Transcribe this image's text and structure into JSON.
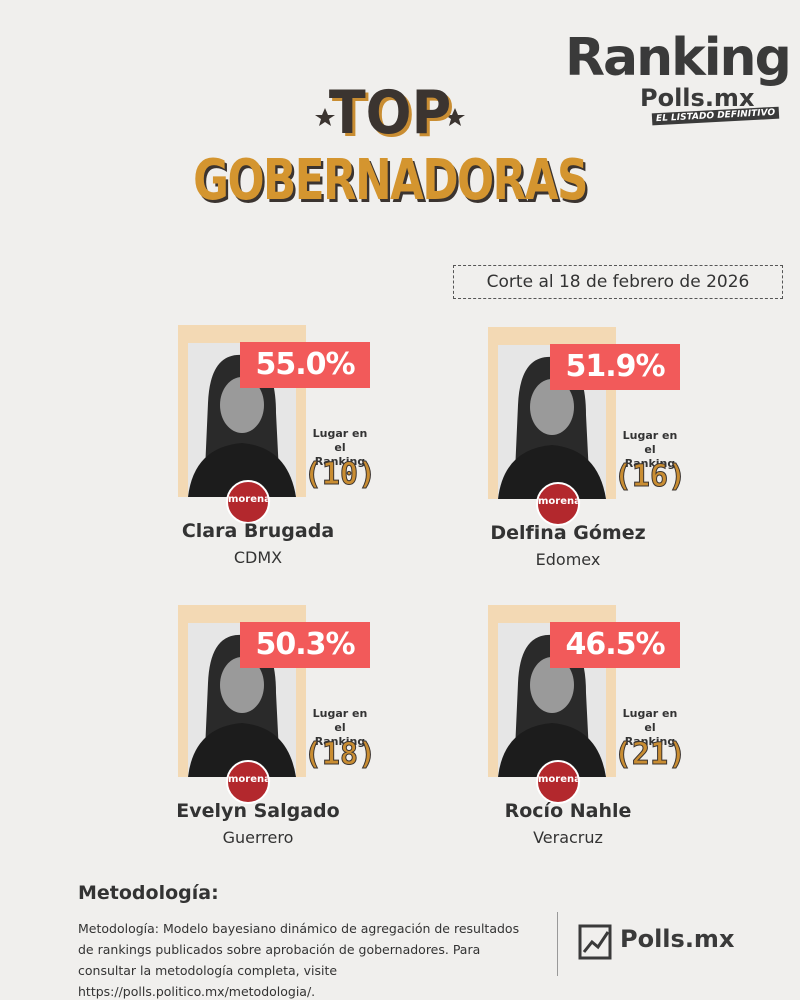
{
  "header": {
    "logo_main": "Ranking",
    "logo_sub": "Polls.mx",
    "logo_tagline": "EL LISTADO DEFINITIVO",
    "title_top": "TOP",
    "title_main": "GOBERNADORAS",
    "cutoff": "Corte al 18 de febrero de 2026"
  },
  "cards": [
    {
      "percent": "55.0%",
      "rank_label": "Lugar en el Ranking",
      "rank": "(10)",
      "party": "morena",
      "name": "Clara Brugada",
      "state": "CDMX"
    },
    {
      "percent": "51.9%",
      "rank_label": "Lugar en el Ranking",
      "rank": "(16)",
      "party": "morena",
      "name": "Delfina Gómez",
      "state": "Edomex"
    },
    {
      "percent": "50.3%",
      "rank_label": "Lugar en el Ranking",
      "rank": "(18)",
      "party": "morena",
      "name": "Evelyn Salgado",
      "state": "Guerrero"
    },
    {
      "percent": "46.5%",
      "rank_label": "Lugar en el Ranking",
      "rank": "(21)",
      "party": "morena",
      "name": "Rocío Nahle",
      "state": "Veracruz"
    }
  ],
  "footer": {
    "methodology_title": "Metodología:",
    "methodology_text": "Metodología: Modelo bayesiano dinámico de agregación de resultados de rankings publicados sobre aprobación de gobernadores. Para consultar la metodología completa, visite https://polls.politico.mx/metodologia/.",
    "logo": "Polls.mx"
  }
}
